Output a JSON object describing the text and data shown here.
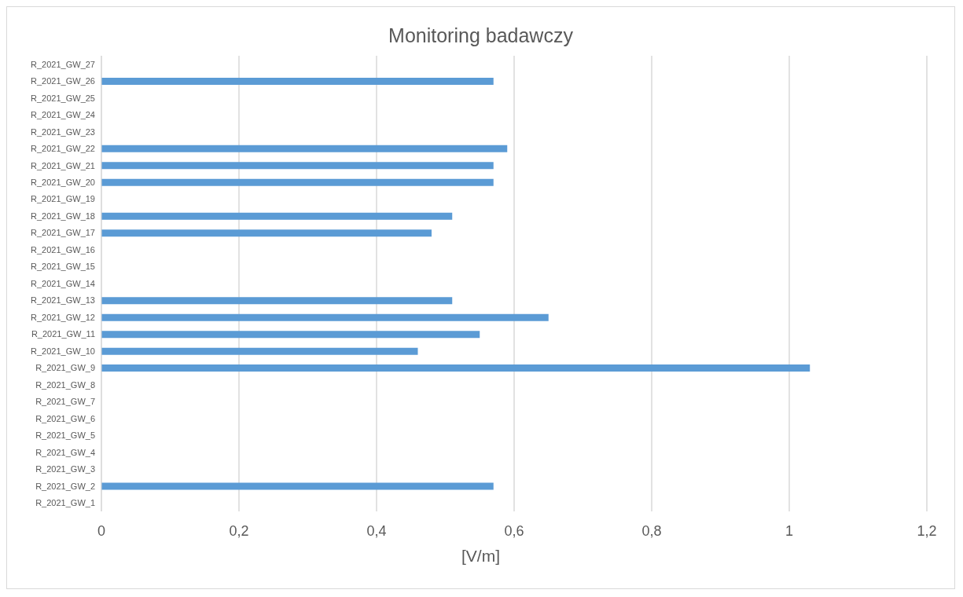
{
  "chart_data": {
    "type": "bar",
    "orientation": "horizontal",
    "title": "Monitoring badawczy",
    "xlabel": "[V/m]",
    "categories": [
      "R_2021_GW_27",
      "R_2021_GW_26",
      "R_2021_GW_25",
      "R_2021_GW_24",
      "R_2021_GW_23",
      "R_2021_GW_22",
      "R_2021_GW_21",
      "R_2021_GW_20",
      "R_2021_GW_19",
      "R_2021_GW_18",
      "R_2021_GW_17",
      "R_2021_GW_16",
      "R_2021_GW_15",
      "R_2021_GW_14",
      "R_2021_GW_13",
      "R_2021_GW_12",
      "R_2021_GW_11",
      "R_2021_GW_10",
      "R_2021_GW_9",
      "R_2021_GW_8",
      "R_2021_GW_7",
      "R_2021_GW_6",
      "R_2021_GW_5",
      "R_2021_GW_4",
      "R_2021_GW_3",
      "R_2021_GW_2",
      "R_2021_GW_1"
    ],
    "values": [
      null,
      0.57,
      null,
      null,
      null,
      0.59,
      0.57,
      0.57,
      null,
      0.51,
      0.48,
      null,
      null,
      null,
      0.51,
      0.65,
      0.55,
      0.46,
      1.03,
      null,
      null,
      null,
      null,
      null,
      null,
      0.57,
      null
    ],
    "color": "#5b9bd5",
    "xlim": [
      0,
      1.2
    ],
    "xticks": [
      0,
      {
        "value": 0.2,
        "label": "0,2"
      },
      {
        "value": 0.4,
        "label": "0,4"
      },
      {
        "value": 0.6,
        "label": "0,6"
      },
      {
        "value": 0.8,
        "label": "0,8"
      },
      1,
      {
        "value": 1.2,
        "label": "1,2"
      }
    ],
    "grid": "x"
  }
}
